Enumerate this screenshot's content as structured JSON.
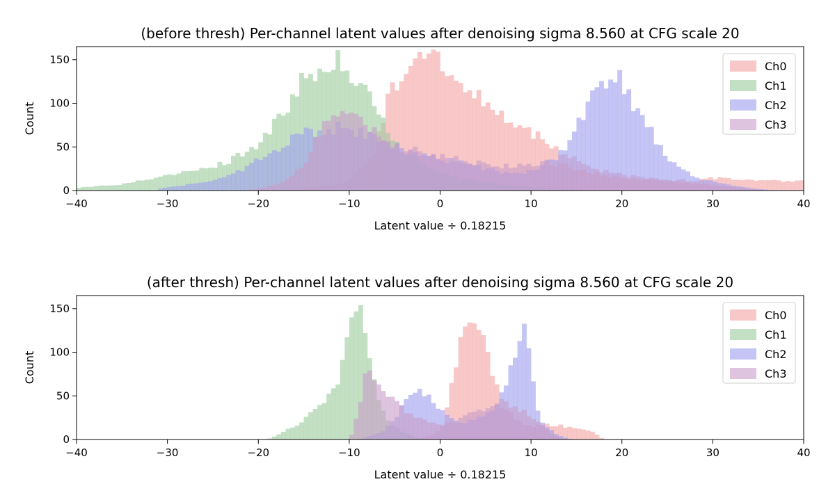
{
  "chart_data": [
    {
      "type": "histogram",
      "title": "(before thresh) Per-channel latent values after denoising sigma 8.560 at CFG scale 20",
      "xlabel": "Latent value ÷ 0.18215",
      "ylabel": "Count",
      "xlim": [
        -40,
        40
      ],
      "ylim": [
        0,
        165
      ],
      "xticks": [
        "−40",
        "−30",
        "−20",
        "−10",
        "0",
        "10",
        "20",
        "30",
        "40"
      ],
      "yticks": [
        "0",
        "50",
        "100",
        "150"
      ],
      "legend_position": "top-right",
      "series": [
        {
          "name": "Ch0",
          "color": "#f4a3a3",
          "points": [
            [
              -21,
              0
            ],
            [
              -19,
              1
            ],
            [
              -17,
              2
            ],
            [
              -15,
              3
            ],
            [
              -13,
              5
            ],
            [
              -11,
              8
            ],
            [
              -10,
              12
            ],
            [
              -9,
              20
            ],
            [
              -8,
              35
            ],
            [
              -7,
              52
            ],
            [
              -6,
              98
            ],
            [
              -5,
              125
            ],
            [
              -4,
              132
            ],
            [
              -3,
              148
            ],
            [
              -2,
              152
            ],
            [
              -1,
              158
            ],
            [
              0,
              150
            ],
            [
              1,
              138
            ],
            [
              2,
              125
            ],
            [
              3,
              118
            ],
            [
              4,
              112
            ],
            [
              5,
              100
            ],
            [
              6,
              92
            ],
            [
              7,
              85
            ],
            [
              8,
              80
            ],
            [
              9,
              72
            ],
            [
              10,
              68
            ],
            [
              11,
              62
            ],
            [
              12,
              52
            ],
            [
              13,
              45
            ],
            [
              14,
              40
            ],
            [
              16,
              30
            ],
            [
              18,
              22
            ],
            [
              20,
              18
            ],
            [
              22,
              15
            ],
            [
              25,
              12
            ],
            [
              28,
              12
            ],
            [
              30,
              14
            ],
            [
              33,
              13
            ],
            [
              36,
              12
            ],
            [
              38,
              11
            ],
            [
              40,
              11
            ]
          ]
        },
        {
          "name": "Ch1",
          "color": "#9ccc9c",
          "points": [
            [
              -40,
              3
            ],
            [
              -38,
              5
            ],
            [
              -35,
              7
            ],
            [
              -33,
              12
            ],
            [
              -31,
              15
            ],
            [
              -29,
              20
            ],
            [
              -27,
              25
            ],
            [
              -25,
              28
            ],
            [
              -23,
              35
            ],
            [
              -21,
              45
            ],
            [
              -20,
              55
            ],
            [
              -19,
              68
            ],
            [
              -18,
              82
            ],
            [
              -17,
              95
            ],
            [
              -16,
              112
            ],
            [
              -15,
              125
            ],
            [
              -14,
              138
            ],
            [
              -13,
              146
            ],
            [
              -12,
              150
            ],
            [
              -11,
              145
            ],
            [
              -10,
              138
            ],
            [
              -9,
              122
            ],
            [
              -8,
              108
            ],
            [
              -7,
              95
            ],
            [
              -6,
              75
            ],
            [
              -5,
              55
            ],
            [
              -4,
              45
            ],
            [
              -3,
              38
            ],
            [
              -2,
              30
            ],
            [
              -1,
              25
            ],
            [
              0,
              20
            ],
            [
              2,
              15
            ],
            [
              4,
              11
            ],
            [
              6,
              8
            ],
            [
              8,
              6
            ],
            [
              10,
              4
            ],
            [
              12,
              3
            ],
            [
              14,
              2
            ],
            [
              16,
              1
            ],
            [
              18,
              0
            ]
          ]
        },
        {
          "name": "Ch2",
          "color": "#9f9fee",
          "points": [
            [
              -31,
              2
            ],
            [
              -29,
              5
            ],
            [
              -27,
              8
            ],
            [
              -25,
              12
            ],
            [
              -23,
              18
            ],
            [
              -21,
              28
            ],
            [
              -19,
              42
            ],
            [
              -17,
              55
            ],
            [
              -15,
              65
            ],
            [
              -13,
              70
            ],
            [
              -11,
              72
            ],
            [
              -9,
              68
            ],
            [
              -7,
              60
            ],
            [
              -5,
              50
            ],
            [
              -3,
              42
            ],
            [
              -1,
              38
            ],
            [
              1,
              35
            ],
            [
              3,
              30
            ],
            [
              5,
              25
            ],
            [
              7,
              20
            ],
            [
              9,
              20
            ],
            [
              11,
              28
            ],
            [
              13,
              40
            ],
            [
              14,
              55
            ],
            [
              15,
              70
            ],
            [
              16,
              92
            ],
            [
              17,
              108
            ],
            [
              18,
              122
            ],
            [
              19,
              135
            ],
            [
              20,
              128
            ],
            [
              21,
              105
            ],
            [
              22,
              90
            ],
            [
              23,
              70
            ],
            [
              24,
              55
            ],
            [
              25,
              40
            ],
            [
              26,
              30
            ],
            [
              27,
              22
            ],
            [
              28,
              15
            ],
            [
              30,
              10
            ],
            [
              32,
              6
            ],
            [
              34,
              3
            ],
            [
              36,
              1
            ],
            [
              38,
              0
            ]
          ]
        },
        {
          "name": "Ch3",
          "color": "#c89cc8",
          "points": [
            [
              -21,
              1
            ],
            [
              -19,
              4
            ],
            [
              -17,
              12
            ],
            [
              -15,
              30
            ],
            [
              -13,
              72
            ],
            [
              -12,
              88
            ],
            [
              -11,
              95
            ],
            [
              -10,
              92
            ],
            [
              -9,
              85
            ],
            [
              -8,
              75
            ],
            [
              -7,
              68
            ],
            [
              -6,
              55
            ],
            [
              -5,
              50
            ],
            [
              -4,
              48
            ],
            [
              -3,
              46
            ],
            [
              -2,
              44
            ],
            [
              -1,
              42
            ],
            [
              0,
              40
            ],
            [
              2,
              36
            ],
            [
              4,
              32
            ],
            [
              6,
              28
            ],
            [
              8,
              28
            ],
            [
              10,
              30
            ],
            [
              12,
              32
            ],
            [
              14,
              28
            ],
            [
              16,
              22
            ],
            [
              18,
              18
            ],
            [
              20,
              15
            ],
            [
              22,
              13
            ],
            [
              24,
              12
            ],
            [
              26,
              10
            ],
            [
              28,
              8
            ],
            [
              30,
              6
            ],
            [
              32,
              4
            ],
            [
              34,
              2
            ],
            [
              36,
              0
            ]
          ]
        }
      ]
    },
    {
      "type": "histogram",
      "title": "(after thresh) Per-channel latent values after denoising sigma 8.560 at CFG scale 20",
      "xlabel": "Latent value ÷ 0.18215",
      "ylabel": "Count",
      "xlim": [
        -40,
        40
      ],
      "ylim": [
        0,
        165
      ],
      "xticks": [
        "−40",
        "−30",
        "−20",
        "−10",
        "0",
        "10",
        "20",
        "30",
        "40"
      ],
      "yticks": [
        "0",
        "50",
        "100",
        "150"
      ],
      "legend_position": "top-right",
      "series": [
        {
          "name": "Ch0",
          "color": "#f4a3a3",
          "points": [
            [
              -3,
              0
            ],
            [
              -2,
              2
            ],
            [
              -1,
              5
            ],
            [
              0,
              10
            ],
            [
              0.5,
              22
            ],
            [
              1,
              45
            ],
            [
              1.5,
              75
            ],
            [
              2,
              100
            ],
            [
              2.5,
              128
            ],
            [
              3,
              145
            ],
            [
              3.5,
              152
            ],
            [
              4,
              140
            ],
            [
              4.5,
              120
            ],
            [
              5,
              100
            ],
            [
              5.5,
              85
            ],
            [
              6,
              70
            ],
            [
              6.5,
              55
            ],
            [
              7,
              40
            ],
            [
              8,
              25
            ],
            [
              9,
              18
            ],
            [
              10,
              15
            ],
            [
              11,
              16
            ],
            [
              12,
              17
            ],
            [
              13,
              16
            ],
            [
              14,
              14
            ],
            [
              15,
              13
            ],
            [
              16,
              11
            ],
            [
              17,
              8
            ],
            [
              17.5,
              3
            ],
            [
              18,
              0
            ]
          ]
        },
        {
          "name": "Ch1",
          "color": "#9ccc9c",
          "points": [
            [
              -19,
              0
            ],
            [
              -18,
              5
            ],
            [
              -17,
              10
            ],
            [
              -16,
              15
            ],
            [
              -15,
              22
            ],
            [
              -14,
              32
            ],
            [
              -13,
              42
            ],
            [
              -12,
              55
            ],
            [
              -11,
              75
            ],
            [
              -10.5,
              95
            ],
            [
              -10,
              120
            ],
            [
              -9.5,
              140
            ],
            [
              -9,
              150
            ],
            [
              -8.5,
              135
            ],
            [
              -8,
              110
            ],
            [
              -7.5,
              85
            ],
            [
              -7,
              60
            ],
            [
              -6.5,
              40
            ],
            [
              -6,
              25
            ],
            [
              -5,
              15
            ],
            [
              -4,
              8
            ],
            [
              -3,
              4
            ],
            [
              -2,
              1
            ],
            [
              -1,
              0
            ]
          ]
        },
        {
          "name": "Ch2",
          "color": "#9f9fee",
          "points": [
            [
              -9,
              0
            ],
            [
              -8,
              3
            ],
            [
              -7,
              6
            ],
            [
              -6,
              12
            ],
            [
              -5,
              22
            ],
            [
              -4,
              40
            ],
            [
              -3,
              55
            ],
            [
              -2,
              52
            ],
            [
              -1,
              45
            ],
            [
              0,
              35
            ],
            [
              1,
              25
            ],
            [
              2,
              18
            ],
            [
              3,
              20
            ],
            [
              4,
              25
            ],
            [
              5,
              30
            ],
            [
              6,
              38
            ],
            [
              7,
              55
            ],
            [
              8,
              90
            ],
            [
              8.5,
              115
            ],
            [
              9,
              135
            ],
            [
              9.5,
              120
            ],
            [
              10,
              80
            ],
            [
              10.5,
              45
            ],
            [
              11,
              25
            ],
            [
              12,
              12
            ],
            [
              13,
              5
            ],
            [
              14,
              1
            ],
            [
              15,
              0
            ]
          ]
        },
        {
          "name": "Ch3",
          "color": "#c89cc8",
          "points": [
            [
              -10,
              0
            ],
            [
              -9.5,
              10
            ],
            [
              -9,
              35
            ],
            [
              -8.5,
              60
            ],
            [
              -8,
              78
            ],
            [
              -7.5,
              72
            ],
            [
              -7,
              65
            ],
            [
              -6,
              55
            ],
            [
              -5,
              45
            ],
            [
              -4,
              35
            ],
            [
              -3,
              28
            ],
            [
              -2,
              22
            ],
            [
              -1,
              18
            ],
            [
              0,
              16
            ],
            [
              1,
              18
            ],
            [
              2,
              22
            ],
            [
              3,
              28
            ],
            [
              4,
              32
            ],
            [
              5,
              35
            ],
            [
              6,
              38
            ],
            [
              7,
              40
            ],
            [
              8,
              38
            ],
            [
              9,
              34
            ],
            [
              10,
              28
            ],
            [
              11,
              18
            ],
            [
              12,
              8
            ],
            [
              13,
              2
            ],
            [
              14,
              0
            ]
          ]
        }
      ]
    }
  ]
}
